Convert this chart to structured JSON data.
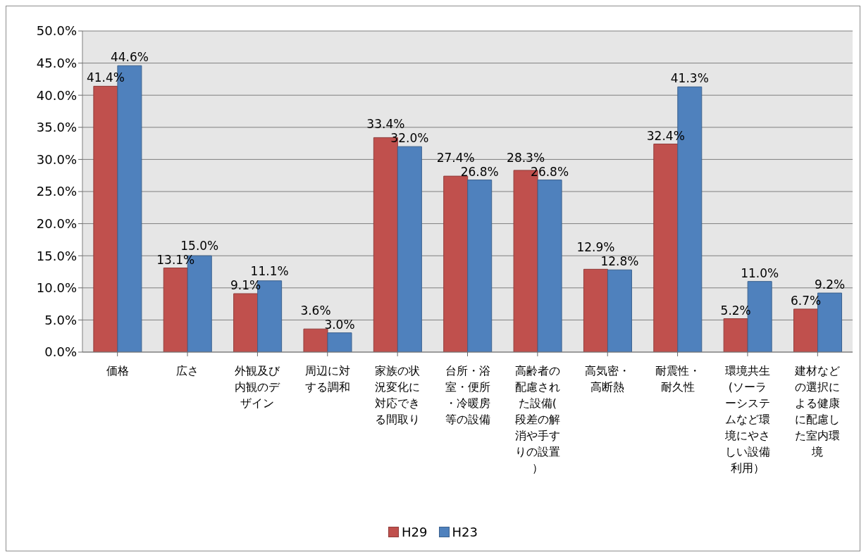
{
  "chart_data": {
    "type": "bar",
    "categories": [
      "価格",
      "広さ",
      "外観及び内観のデザイン",
      "周辺に対する調和",
      "家族の状況変化に対応できる間取り",
      "台所・浴室・便所・冷暖房等の設備",
      "高齢者の配慮された設備(段差の解消や手すりの設置）",
      "高気密・高断熱",
      "耐震性・耐久性",
      "環境共生(ソーラーシステムなど環境にやさしい設備利用）",
      "建材などの選択による健康に配慮した室内環境"
    ],
    "series": [
      {
        "name": "H29",
        "color": "#c0504d",
        "values": [
          41.4,
          13.1,
          9.1,
          3.6,
          33.4,
          27.4,
          28.3,
          12.9,
          32.4,
          5.2,
          6.7
        ],
        "value_labels": [
          "41.4%",
          "13.1%",
          "9.1%",
          "3.6%",
          "33.4%",
          "27.4%",
          "28.3%",
          "12.9%",
          "32.4%",
          "5.2%",
          "6.7%"
        ]
      },
      {
        "name": "H23",
        "color": "#4f81bd",
        "values": [
          44.6,
          15.0,
          11.1,
          3.0,
          32.0,
          26.8,
          26.8,
          12.8,
          41.3,
          11.0,
          9.2
        ],
        "value_labels": [
          "44.6%",
          "15.0%",
          "11.1%",
          "3.0%",
          "32.0%",
          "26.8%",
          "26.8%",
          "12.8%",
          "41.3%",
          "11.0%",
          "9.2%"
        ]
      }
    ],
    "ylim": [
      0,
      50
    ],
    "yticks": [
      {
        "value": 0,
        "label": "0.0%"
      },
      {
        "value": 5,
        "label": "5.0%"
      },
      {
        "value": 10,
        "label": "10.0%"
      },
      {
        "value": 15,
        "label": "15.0%"
      },
      {
        "value": 20,
        "label": "20.0%"
      },
      {
        "value": 25,
        "label": "25.0%"
      },
      {
        "value": 30,
        "label": "30.0%"
      },
      {
        "value": 35,
        "label": "35.0%"
      },
      {
        "value": 40,
        "label": "40.0%"
      },
      {
        "value": 45,
        "label": "45.0%"
      },
      {
        "value": 50,
        "label": "50.0%"
      }
    ],
    "grid": "y",
    "legend": "bottom"
  }
}
